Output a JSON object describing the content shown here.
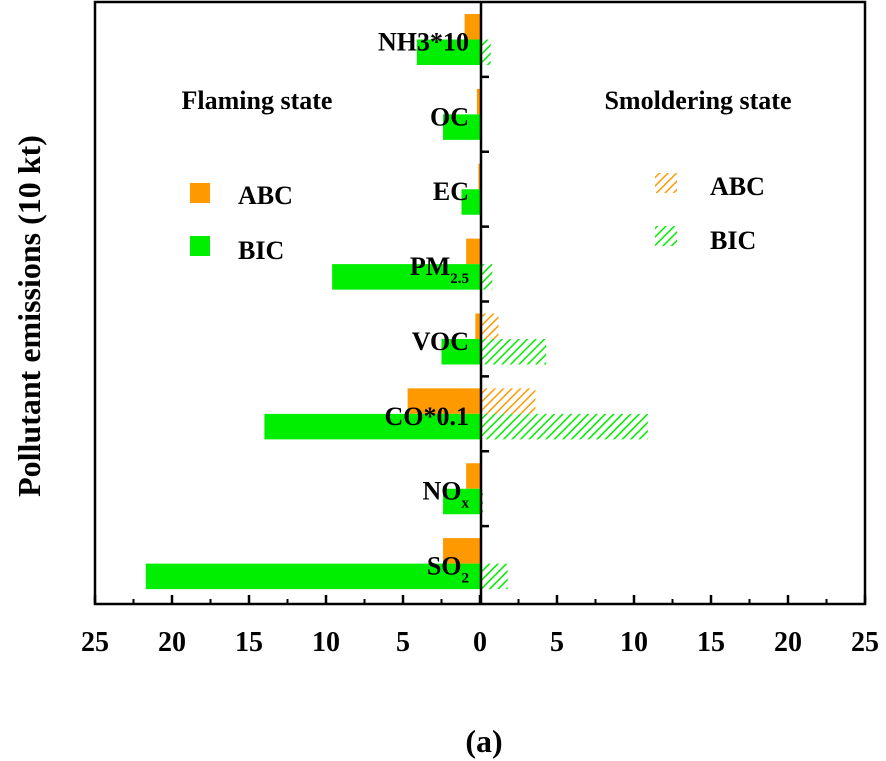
{
  "chart_data": {
    "type": "bar",
    "orientation": "horizontal",
    "layout": "back-to-back",
    "caption": "(a)",
    "ylabel": "Pollutant emissions (10 kt)",
    "xlim": [
      -25,
      25
    ],
    "x_ticks": [
      -25,
      -20,
      -15,
      -10,
      -5,
      0,
      5,
      10,
      15,
      20,
      25
    ],
    "x_tick_labels": [
      "25",
      "20",
      "15",
      "10",
      "5",
      "0",
      "5",
      "10",
      "15",
      "20",
      "25"
    ],
    "grid": false,
    "categories": [
      {
        "base": "NH3*10",
        "sub": ""
      },
      {
        "base": "OC",
        "sub": ""
      },
      {
        "base": "EC",
        "sub": ""
      },
      {
        "base": "PM",
        "sub": "2.5"
      },
      {
        "base": "VOC",
        "sub": ""
      },
      {
        "base": "CO*0.1",
        "sub": ""
      },
      {
        "base": "NO",
        "sub": "x"
      },
      {
        "base": "SO",
        "sub": "2"
      }
    ],
    "panels": {
      "flaming": {
        "title": "Flaming state",
        "legend_position": "left",
        "series": [
          {
            "name": "ABC",
            "color": "#ff9900",
            "pattern": "solid",
            "values": [
              1.0,
              0.2,
              0.1,
              0.9,
              0.3,
              4.7,
              0.9,
              2.4
            ]
          },
          {
            "name": "BIC",
            "color": "#00ee00",
            "pattern": "solid",
            "values": [
              4.1,
              2.4,
              1.2,
              9.6,
              2.5,
              14.0,
              2.4,
              21.7
            ]
          }
        ]
      },
      "smoldering": {
        "title": "Smoldering state",
        "legend_position": "right",
        "series": [
          {
            "name": "ABC",
            "color": "#ff9900",
            "pattern": "hatched",
            "values": [
              0.0,
              0.0,
              0.0,
              0.1,
              1.2,
              3.6,
              0.0,
              0.1
            ]
          },
          {
            "name": "BIC",
            "color": "#00ee00",
            "pattern": "hatched",
            "values": [
              0.7,
              0.1,
              0.1,
              0.8,
              4.3,
              10.9,
              0.2,
              1.8
            ]
          }
        ]
      }
    }
  }
}
